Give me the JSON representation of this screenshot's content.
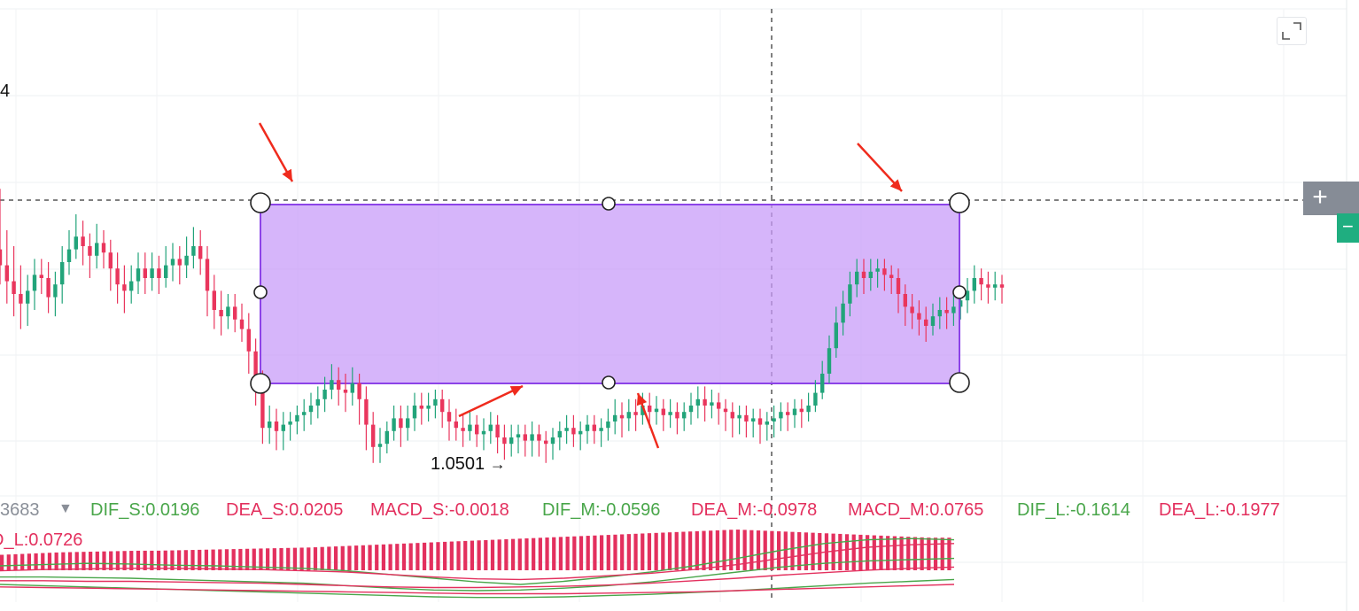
{
  "colors": {
    "up": "#22a47a",
    "down": "#e9365d",
    "rect_fill": "#c89cf8",
    "rect_stroke": "#8c43e8",
    "arrow": "#ef2b1d",
    "dif": "#49a64a",
    "dea": "#e3305e",
    "macd": "#e3305e",
    "muted": "#8a8f98"
  },
  "price_axis": {
    "partial_label": "4"
  },
  "low_marker": {
    "label": "1.0501",
    "arrow": "→"
  },
  "buttons": {
    "plus": "+",
    "minus": "−"
  },
  "indicator_legend": {
    "prefix": "3683",
    "items": [
      {
        "label": "DIF_S:0.0196",
        "color": "#49a64a"
      },
      {
        "label": "DEA_S:0.0205",
        "color": "#e3305e"
      },
      {
        "label": "MACD_S:-0.0018",
        "color": "#e3305e"
      },
      {
        "label": "DIF_M:-0.0596",
        "color": "#49a64a"
      },
      {
        "label": "DEA_M:-0.0978",
        "color": "#e3305e"
      },
      {
        "label": "MACD_M:0.0765",
        "color": "#e3305e"
      },
      {
        "label": "DIF_L:-0.1614",
        "color": "#49a64a"
      },
      {
        "label": "DEA_L:-0.1977",
        "color": "#e3305e"
      }
    ],
    "second_line": "D_L:0.0726"
  },
  "chart_data": {
    "type": "candlestick",
    "grid": true,
    "crosshair": true,
    "annotation": "rectangle",
    "low_label": "1.0501",
    "candles": [
      [
        69,
        64,
        88,
        58
      ],
      [
        64,
        59,
        75,
        52
      ],
      [
        59,
        55,
        70,
        48
      ],
      [
        55,
        52,
        64,
        44
      ],
      [
        52,
        56,
        61,
        45
      ],
      [
        56,
        61,
        66,
        50
      ],
      [
        61,
        60,
        66,
        55
      ],
      [
        60,
        54,
        65,
        49
      ],
      [
        54,
        58,
        62,
        48
      ],
      [
        58,
        65,
        70,
        52
      ],
      [
        65,
        69,
        75,
        61
      ],
      [
        69,
        73,
        80,
        66
      ],
      [
        73,
        70,
        78,
        64
      ],
      [
        70,
        67,
        74,
        60
      ],
      [
        67,
        71,
        77,
        63
      ],
      [
        71,
        68,
        75,
        63
      ],
      [
        68,
        63,
        72,
        56
      ],
      [
        63,
        58,
        68,
        52
      ],
      [
        58,
        56,
        64,
        49
      ],
      [
        56,
        59,
        64,
        52
      ],
      [
        59,
        63,
        68,
        55
      ],
      [
        63,
        60,
        68,
        55
      ],
      [
        60,
        63,
        68,
        56
      ],
      [
        63,
        60,
        67,
        55
      ],
      [
        60,
        64,
        70,
        57
      ],
      [
        64,
        66,
        71,
        59
      ],
      [
        66,
        64,
        70,
        58
      ],
      [
        64,
        67,
        73,
        60
      ],
      [
        67,
        70,
        76,
        63
      ],
      [
        70,
        66,
        75,
        61
      ],
      [
        66,
        56,
        70,
        48
      ],
      [
        56,
        50,
        61,
        44
      ],
      [
        50,
        48,
        56,
        42
      ],
      [
        48,
        51,
        55,
        44
      ],
      [
        51,
        47,
        55,
        43
      ],
      [
        47,
        44,
        52,
        40
      ],
      [
        44,
        37,
        49,
        30
      ],
      [
        37,
        26,
        41,
        20
      ],
      [
        26,
        13,
        31,
        8
      ],
      [
        13,
        15,
        20,
        8
      ],
      [
        15,
        12,
        19,
        6
      ],
      [
        12,
        14,
        18,
        6
      ],
      [
        14,
        15,
        18,
        9
      ],
      [
        15,
        17,
        20,
        11
      ],
      [
        17,
        18,
        22,
        12
      ],
      [
        18,
        20,
        24,
        14
      ],
      [
        20,
        22,
        26,
        16
      ],
      [
        22,
        25,
        29,
        18
      ],
      [
        25,
        28,
        33,
        22
      ],
      [
        28,
        25,
        32,
        20
      ],
      [
        25,
        24,
        30,
        18
      ],
      [
        24,
        27,
        32,
        20
      ],
      [
        27,
        22,
        30,
        14
      ],
      [
        22,
        14,
        26,
        6
      ],
      [
        14,
        7,
        18,
        2
      ],
      [
        7,
        8,
        13,
        2
      ],
      [
        8,
        12,
        15,
        5
      ],
      [
        12,
        16,
        20,
        9
      ],
      [
        16,
        13,
        20,
        7
      ],
      [
        13,
        16,
        20,
        9
      ],
      [
        16,
        20,
        24,
        12
      ],
      [
        20,
        19,
        24,
        14
      ],
      [
        19,
        20,
        24,
        15
      ],
      [
        20,
        22,
        25,
        16
      ],
      [
        22,
        18,
        25,
        13
      ],
      [
        18,
        15,
        22,
        9
      ],
      [
        15,
        13,
        19,
        9
      ],
      [
        13,
        12,
        17,
        7
      ],
      [
        12,
        14,
        18,
        9
      ],
      [
        14,
        11,
        17,
        7
      ],
      [
        11,
        12,
        16,
        6
      ],
      [
        12,
        14,
        18,
        8
      ],
      [
        14,
        10,
        17,
        5
      ],
      [
        10,
        8,
        14,
        3
      ],
      [
        8,
        10,
        14,
        4
      ],
      [
        10,
        11,
        14,
        5
      ],
      [
        11,
        9,
        14,
        4
      ],
      [
        9,
        11,
        15,
        4
      ],
      [
        11,
        9,
        14,
        4
      ],
      [
        9,
        8,
        12,
        2
      ],
      [
        8,
        10,
        13,
        3
      ],
      [
        10,
        12,
        15,
        6
      ],
      [
        12,
        13,
        17,
        8
      ],
      [
        13,
        11,
        17,
        7
      ],
      [
        11,
        12,
        15,
        6
      ],
      [
        12,
        14,
        17,
        8
      ],
      [
        14,
        12,
        17,
        8
      ],
      [
        12,
        13,
        16,
        7
      ],
      [
        13,
        15,
        19,
        9
      ],
      [
        15,
        17,
        22,
        11
      ],
      [
        17,
        16,
        21,
        10
      ],
      [
        16,
        18,
        22,
        12
      ],
      [
        18,
        17,
        22,
        12
      ],
      [
        17,
        20,
        24,
        14
      ],
      [
        20,
        18,
        24,
        13
      ],
      [
        18,
        19,
        23,
        14
      ],
      [
        19,
        17,
        22,
        12
      ],
      [
        17,
        18,
        22,
        13
      ],
      [
        18,
        16,
        21,
        11
      ],
      [
        16,
        18,
        21,
        12
      ],
      [
        18,
        20,
        24,
        14
      ],
      [
        20,
        22,
        26,
        16
      ],
      [
        22,
        20,
        26,
        15
      ],
      [
        20,
        21,
        25,
        16
      ],
      [
        21,
        19,
        24,
        14
      ],
      [
        19,
        18,
        22,
        12
      ],
      [
        18,
        16,
        21,
        10
      ],
      [
        16,
        17,
        20,
        11
      ],
      [
        17,
        15,
        20,
        10
      ],
      [
        15,
        16,
        19,
        10
      ],
      [
        16,
        14,
        19,
        8
      ],
      [
        14,
        15,
        18,
        9
      ],
      [
        15,
        16,
        20,
        10
      ],
      [
        16,
        18,
        21,
        12
      ],
      [
        18,
        17,
        21,
        12
      ],
      [
        17,
        19,
        22,
        13
      ],
      [
        19,
        18,
        22,
        13
      ],
      [
        18,
        20,
        24,
        15
      ],
      [
        20,
        24,
        28,
        18
      ],
      [
        24,
        30,
        34,
        22
      ],
      [
        30,
        38,
        42,
        27
      ],
      [
        38,
        46,
        51,
        35
      ],
      [
        46,
        52,
        56,
        42
      ],
      [
        52,
        58,
        62,
        48
      ],
      [
        58,
        62,
        66,
        54
      ],
      [
        62,
        60,
        66,
        55
      ],
      [
        60,
        62,
        66,
        56
      ],
      [
        62,
        63,
        66,
        57
      ],
      [
        63,
        61,
        66,
        56
      ],
      [
        61,
        60,
        64,
        55
      ],
      [
        60,
        55,
        63,
        49
      ],
      [
        55,
        51,
        58,
        45
      ],
      [
        51,
        49,
        55,
        44
      ],
      [
        49,
        47,
        53,
        42
      ],
      [
        47,
        45,
        51,
        40
      ],
      [
        45,
        48,
        52,
        42
      ],
      [
        48,
        50,
        54,
        44
      ],
      [
        50,
        49,
        54,
        44
      ],
      [
        49,
        51,
        55,
        45
      ],
      [
        51,
        53,
        56,
        47
      ],
      [
        53,
        56,
        60,
        49
      ],
      [
        56,
        60,
        64,
        52
      ],
      [
        60,
        58,
        63,
        53
      ],
      [
        58,
        57,
        62,
        52
      ],
      [
        57,
        58,
        62,
        53
      ],
      [
        58,
        57,
        61,
        52
      ]
    ],
    "macd": {
      "histogram": [
        0.38,
        0.4,
        0.42,
        0.44,
        0.45,
        0.46,
        0.47,
        0.48,
        0.48,
        0.49,
        0.5,
        0.51,
        0.52,
        0.53,
        0.54,
        0.55,
        0.56,
        0.58,
        0.6,
        0.62,
        0.64,
        0.66,
        0.68,
        0.7,
        0.72,
        0.74,
        0.76,
        0.78,
        0.8,
        0.82,
        0.84,
        0.86,
        0.88,
        0.9,
        0.92,
        0.94,
        0.96,
        0.98,
        1.0,
        0.98,
        0.96,
        0.94,
        0.92,
        0.9,
        0.88,
        0.86,
        0.84,
        0.82,
        0.8,
        0.8
      ],
      "series": [
        {
          "kind": "dif",
          "values": [
            0.3,
            0.32,
            0.34,
            0.33,
            0.31,
            0.3,
            0.28,
            0.26,
            0.22,
            0.16,
            0.1,
            0.04,
            0.0,
            0.05,
            0.12,
            0.2,
            0.3,
            0.42,
            0.55,
            0.66,
            0.72,
            0.74,
            0.72
          ]
        },
        {
          "kind": "dea",
          "values": [
            0.22,
            0.24,
            0.25,
            0.26,
            0.26,
            0.25,
            0.24,
            0.22,
            0.2,
            0.16,
            0.12,
            0.09,
            0.08,
            0.1,
            0.14,
            0.18,
            0.24,
            0.32,
            0.42,
            0.52,
            0.6,
            0.64,
            0.66
          ]
        },
        {
          "kind": "dif",
          "values": [
            0.12,
            0.12,
            0.11,
            0.1,
            0.08,
            0.06,
            0.04,
            0.02,
            -0.02,
            -0.06,
            -0.09,
            -0.1,
            -0.09,
            -0.06,
            -0.02,
            0.04,
            0.12,
            0.2,
            0.28,
            0.34,
            0.38,
            0.4,
            0.42
          ]
        },
        {
          "kind": "dea",
          "values": [
            0.06,
            0.06,
            0.05,
            0.05,
            0.04,
            0.03,
            0.02,
            0.0,
            -0.02,
            -0.04,
            -0.05,
            -0.05,
            -0.04,
            -0.03,
            -0.01,
            0.02,
            0.06,
            0.1,
            0.15,
            0.19,
            0.23,
            0.26,
            0.28
          ]
        },
        {
          "kind": "dif",
          "values": [
            0.0,
            -0.02,
            -0.04,
            -0.06,
            -0.08,
            -0.1,
            -0.12,
            -0.14,
            -0.16,
            -0.18,
            -0.2,
            -0.21,
            -0.21,
            -0.2,
            -0.18,
            -0.16,
            -0.13,
            -0.1,
            -0.06,
            -0.02,
            0.02,
            0.05,
            0.08
          ]
        },
        {
          "kind": "dea",
          "values": [
            -0.04,
            -0.05,
            -0.06,
            -0.07,
            -0.08,
            -0.09,
            -0.1,
            -0.11,
            -0.12,
            -0.13,
            -0.14,
            -0.15,
            -0.15,
            -0.15,
            -0.14,
            -0.13,
            -0.12,
            -0.1,
            -0.08,
            -0.06,
            -0.04,
            -0.02,
            0.0
          ]
        }
      ]
    }
  }
}
